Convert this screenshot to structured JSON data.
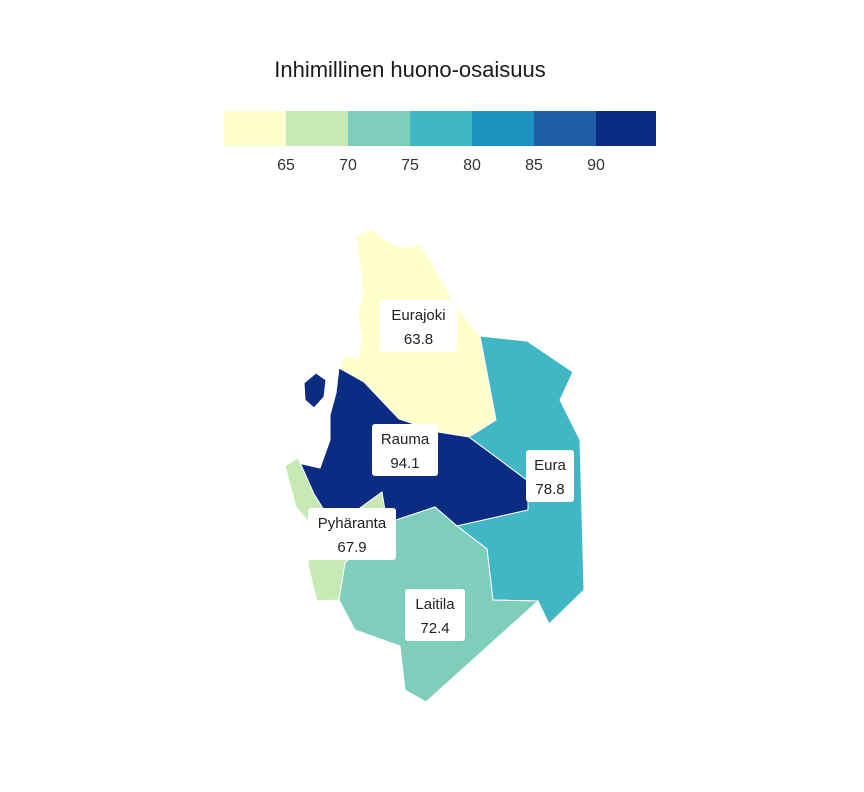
{
  "title": "Inhimillinen huono-osaisuus",
  "legend": {
    "bins": [
      {
        "color": "#ffffcc"
      },
      {
        "color": "#c7e9b4"
      },
      {
        "color": "#7fcdbb"
      },
      {
        "color": "#41b6c4"
      },
      {
        "color": "#1d91c0"
      },
      {
        "color": "#225ea8"
      },
      {
        "color": "#0c2c84"
      }
    ],
    "ticks": [
      "65",
      "70",
      "75",
      "80",
      "85",
      "90"
    ]
  },
  "municipalities": [
    {
      "id": "eurajoki",
      "name": "Eurajoki",
      "value": "63.8",
      "color": "#ffffcc"
    },
    {
      "id": "rauma",
      "name": "Rauma",
      "value": "94.1",
      "color": "#0c2c84"
    },
    {
      "id": "eura",
      "name": "Eura",
      "value": "78.8",
      "color": "#41b6c4"
    },
    {
      "id": "pyharanta",
      "name": "Pyhäranta",
      "value": "67.9",
      "color": "#c7e9b4"
    },
    {
      "id": "laitila",
      "name": "Laitila",
      "value": "72.4",
      "color": "#7fcdbb"
    }
  ]
}
